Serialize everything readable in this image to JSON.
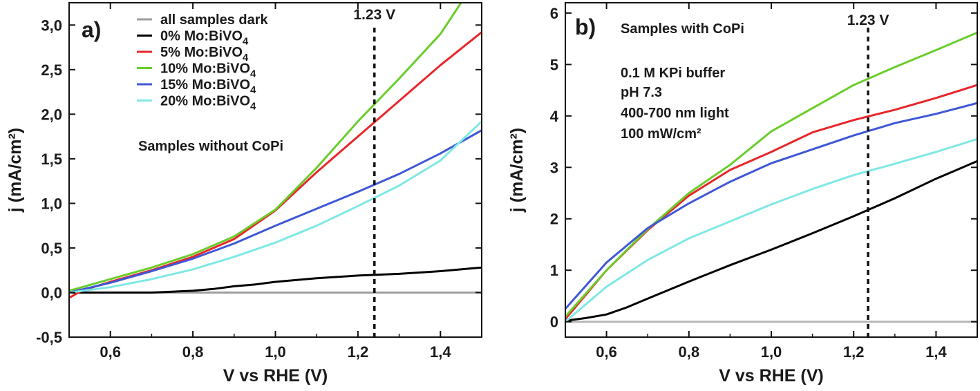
{
  "chart_data": [
    {
      "type": "line",
      "panel_label": "a)",
      "xlabel": "V vs RHE (V)",
      "ylabel": "j (mA/cm²)",
      "xlim": [
        0.5,
        1.5
      ],
      "ylim": [
        -0.5,
        3.25
      ],
      "x_ticks": [
        0.6,
        0.8,
        1.0,
        1.2,
        1.4
      ],
      "x_tick_labels": [
        "0,6",
        "0,8",
        "1,0",
        "1,2",
        "1,4"
      ],
      "y_ticks": [
        -0.5,
        0.0,
        0.5,
        1.0,
        1.5,
        2.0,
        2.5,
        3.0
      ],
      "y_tick_labels": [
        "-0,5",
        "0,0",
        "0,5",
        "1,0",
        "1,5",
        "2,0",
        "2,5",
        "3,0"
      ],
      "legend_position": "top-center",
      "annotations": [
        "Samples without CoPi"
      ],
      "marker": {
        "x": 1.24,
        "label": "1.23 V"
      },
      "grid": false,
      "series": [
        {
          "name": "all samples dark",
          "color": "#9e9e9e",
          "x": [
            0.5,
            0.6,
            0.8,
            1.0,
            1.2,
            1.5
          ],
          "y": [
            0.0,
            0.0,
            0.0,
            0.0,
            0.0,
            0.0
          ]
        },
        {
          "name": "0% Mo:BiVO₄",
          "color": "#000000",
          "x": [
            0.5,
            0.55,
            0.6,
            0.7,
            0.8,
            0.85,
            0.9,
            0.95,
            1.0,
            1.1,
            1.2,
            1.3,
            1.4,
            1.5
          ],
          "y": [
            0.0,
            0.0,
            0.0,
            0.0,
            0.02,
            0.04,
            0.07,
            0.09,
            0.12,
            0.16,
            0.19,
            0.21,
            0.24,
            0.28
          ]
        },
        {
          "name": "5% Mo:BiVO₄",
          "color": "#e8262a",
          "x": [
            0.5,
            0.53,
            0.6,
            0.7,
            0.8,
            0.9,
            1.0,
            1.1,
            1.2,
            1.3,
            1.4,
            1.5
          ],
          "y": [
            -0.06,
            0.02,
            0.12,
            0.25,
            0.4,
            0.6,
            0.92,
            1.35,
            1.75,
            2.15,
            2.55,
            2.92
          ]
        },
        {
          "name": "10% Mo:BiVO₄",
          "color": "#6acd2b",
          "x": [
            0.5,
            0.6,
            0.7,
            0.8,
            0.9,
            1.0,
            1.1,
            1.2,
            1.3,
            1.4,
            1.45
          ],
          "y": [
            0.02,
            0.15,
            0.28,
            0.43,
            0.63,
            0.93,
            1.4,
            1.92,
            2.4,
            2.9,
            3.25
          ]
        },
        {
          "name": "15% Mo:BiVO₄",
          "color": "#3f57d6",
          "x": [
            0.5,
            0.6,
            0.7,
            0.8,
            0.9,
            1.0,
            1.1,
            1.2,
            1.3,
            1.4,
            1.5
          ],
          "y": [
            0.0,
            0.11,
            0.24,
            0.38,
            0.55,
            0.75,
            0.94,
            1.13,
            1.33,
            1.56,
            1.82
          ]
        },
        {
          "name": "20% Mo:BiVO₄",
          "color": "#7fe8e4",
          "x": [
            0.5,
            0.6,
            0.7,
            0.8,
            0.9,
            1.0,
            1.1,
            1.2,
            1.3,
            1.4,
            1.5
          ],
          "y": [
            0.0,
            0.06,
            0.15,
            0.26,
            0.4,
            0.56,
            0.75,
            0.97,
            1.2,
            1.48,
            1.92
          ]
        }
      ]
    },
    {
      "type": "line",
      "panel_label": "b)",
      "xlabel": "V vs RHE (V)",
      "ylabel": "j (mA/cm²)",
      "xlim": [
        0.5,
        1.5
      ],
      "ylim": [
        -0.3,
        6.2
      ],
      "x_ticks": [
        0.6,
        0.8,
        1.0,
        1.2,
        1.4
      ],
      "x_tick_labels": [
        "0,6",
        "0,8",
        "1,0",
        "1,2",
        "1,4"
      ],
      "y_ticks": [
        0,
        1,
        2,
        3,
        4,
        5,
        6
      ],
      "y_tick_labels": [
        "0",
        "1",
        "2",
        "3",
        "4",
        "5",
        "6"
      ],
      "annotations": [
        "Samples with CoPi",
        "0.1 M KPi buffer",
        "pH 7.3",
        "400-700 nm light",
        "100 mW/cm²"
      ],
      "marker": {
        "x": 1.235,
        "label": "1.23 V"
      },
      "grid": false,
      "series": [
        {
          "name": "all samples dark",
          "color": "#b5b5b5",
          "x": [
            0.5,
            0.6,
            0.8,
            1.0,
            1.2,
            1.5
          ],
          "y": [
            0.0,
            0.0,
            0.0,
            0.0,
            0.0,
            0.0
          ]
        },
        {
          "name": "0% Mo:BiVO₄",
          "color": "#000000",
          "x": [
            0.5,
            0.55,
            0.6,
            0.65,
            0.7,
            0.8,
            0.9,
            1.0,
            1.1,
            1.2,
            1.3,
            1.4,
            1.5
          ],
          "y": [
            0.02,
            0.07,
            0.14,
            0.28,
            0.45,
            0.78,
            1.1,
            1.4,
            1.72,
            2.05,
            2.4,
            2.78,
            3.12
          ]
        },
        {
          "name": "5% Mo:BiVO₄",
          "color": "#e8262a",
          "x": [
            0.5,
            0.6,
            0.7,
            0.8,
            0.9,
            1.0,
            1.1,
            1.2,
            1.3,
            1.4,
            1.5
          ],
          "y": [
            0.05,
            1.0,
            1.78,
            2.45,
            2.95,
            3.3,
            3.68,
            3.92,
            4.12,
            4.35,
            4.6
          ]
        },
        {
          "name": "10% Mo:BiVO₄",
          "color": "#6acd2b",
          "x": [
            0.5,
            0.6,
            0.7,
            0.8,
            0.9,
            1.0,
            1.1,
            1.2,
            1.3,
            1.4,
            1.5
          ],
          "y": [
            0.1,
            1.0,
            1.8,
            2.5,
            3.05,
            3.7,
            4.15,
            4.6,
            4.95,
            5.28,
            5.62
          ]
        },
        {
          "name": "15% Mo:BiVO₄",
          "color": "#3f57d6",
          "x": [
            0.5,
            0.6,
            0.7,
            0.8,
            0.9,
            1.0,
            1.1,
            1.2,
            1.3,
            1.4,
            1.5
          ],
          "y": [
            0.25,
            1.15,
            1.82,
            2.3,
            2.72,
            3.08,
            3.35,
            3.62,
            3.86,
            4.04,
            4.25
          ]
        },
        {
          "name": "20% Mo:BiVO₄",
          "color": "#7fe8e4",
          "x": [
            0.5,
            0.6,
            0.7,
            0.8,
            0.9,
            1.0,
            1.1,
            1.2,
            1.3,
            1.4,
            1.5
          ],
          "y": [
            0.0,
            0.68,
            1.2,
            1.62,
            1.95,
            2.28,
            2.58,
            2.85,
            3.07,
            3.3,
            3.55
          ]
        }
      ]
    }
  ]
}
